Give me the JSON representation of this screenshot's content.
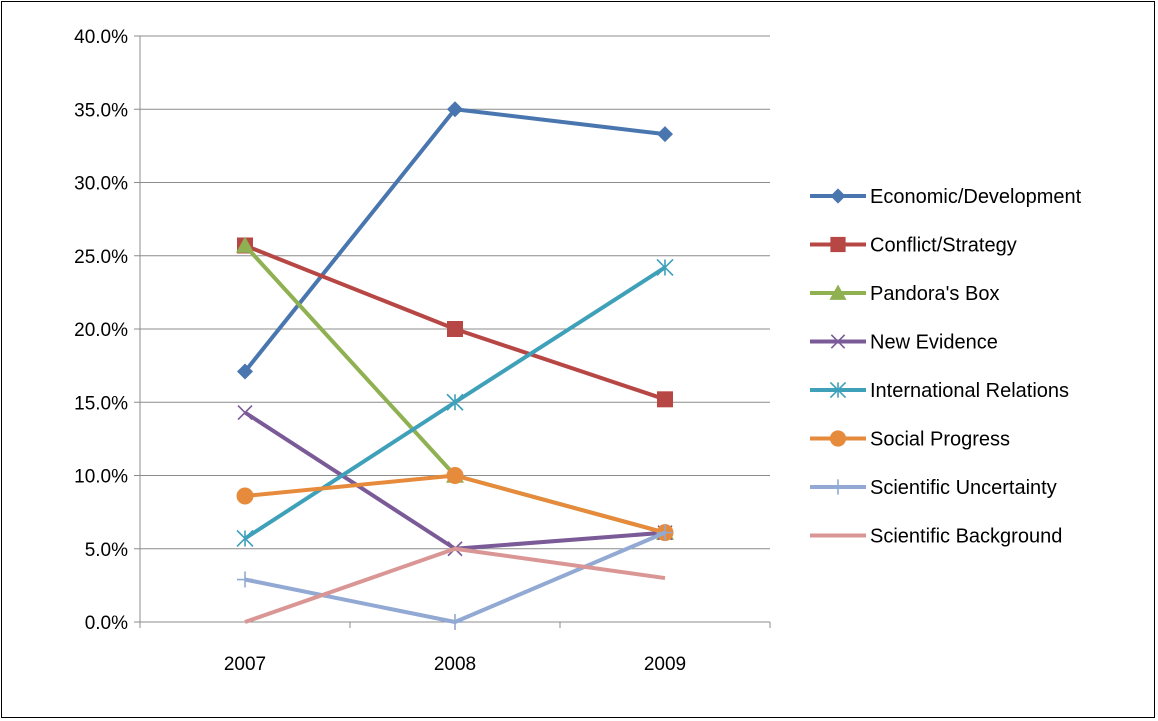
{
  "chart_data": {
    "type": "line",
    "title": "",
    "xlabel": "",
    "ylabel": "",
    "categories": [
      "2007",
      "2008",
      "2009"
    ],
    "ylim": [
      0,
      40
    ],
    "yticks": [
      0,
      5,
      10,
      15,
      20,
      25,
      30,
      35,
      40
    ],
    "ytick_labels": [
      "0.0%",
      "5.0%",
      "10.0%",
      "15.0%",
      "20.0%",
      "25.0%",
      "30.0%",
      "35.0%",
      "40.0%"
    ],
    "grid": true,
    "legend_position": "right",
    "series": [
      {
        "name": "Economic/Development",
        "values": [
          17.1,
          35.0,
          33.3
        ],
        "color": "#4A76B0",
        "marker": "diamond"
      },
      {
        "name": "Conflict/Strategy",
        "values": [
          25.7,
          20.0,
          15.2
        ],
        "color": "#B74744",
        "marker": "square"
      },
      {
        "name": "Pandora's Box",
        "values": [
          25.7,
          10.0,
          6.1
        ],
        "color": "#8FB152",
        "marker": "triangle"
      },
      {
        "name": "New Evidence",
        "values": [
          14.3,
          5.0,
          6.1
        ],
        "color": "#7A5A97",
        "marker": "x"
      },
      {
        "name": "International Relations",
        "values": [
          5.7,
          15.0,
          24.2
        ],
        "color": "#3FA0B9",
        "marker": "star"
      },
      {
        "name": "Social Progress",
        "values": [
          8.6,
          10.0,
          6.1
        ],
        "color": "#E68A3C",
        "marker": "circle"
      },
      {
        "name": "Scientific Uncertainty",
        "values": [
          2.9,
          0.0,
          6.1
        ],
        "color": "#92A9D3",
        "marker": "plus"
      },
      {
        "name": "Scientific Background",
        "values": [
          0.0,
          5.0,
          3.0
        ],
        "color": "#D99694",
        "marker": "none"
      }
    ]
  }
}
